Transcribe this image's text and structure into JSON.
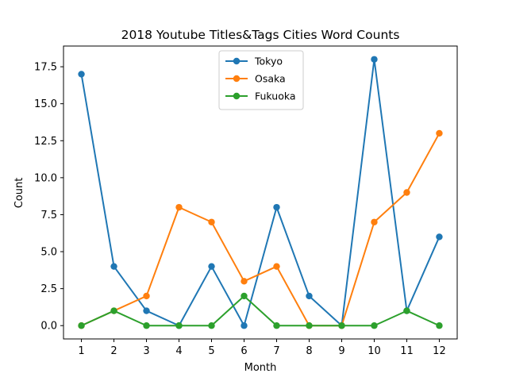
{
  "chart_data": {
    "type": "line",
    "title": "2018 Youtube Titles&Tags Cities Word Counts",
    "xlabel": "Month",
    "ylabel": "Count",
    "x": [
      1,
      2,
      3,
      4,
      5,
      6,
      7,
      8,
      9,
      10,
      11,
      12
    ],
    "x_ticks": [
      "1",
      "2",
      "3",
      "4",
      "5",
      "6",
      "7",
      "8",
      "9",
      "10",
      "11",
      "12"
    ],
    "y_ticks": [
      "0.0",
      "2.5",
      "5.0",
      "7.5",
      "10.0",
      "12.5",
      "15.0",
      "17.5"
    ],
    "y_tick_values": [
      0,
      2.5,
      5,
      7.5,
      10,
      12.5,
      15,
      17.5
    ],
    "xlim": [
      0.45,
      12.55
    ],
    "ylim": [
      -0.9,
      18.9
    ],
    "grid": false,
    "legend_position": "upper center",
    "series": [
      {
        "name": "Tokyo",
        "color": "#1f77b4",
        "values": [
          17,
          4,
          1,
          0,
          4,
          0,
          8,
          2,
          0,
          18,
          1,
          6
        ]
      },
      {
        "name": "Osaka",
        "color": "#ff7f0e",
        "values": [
          0,
          1,
          2,
          8,
          7,
          3,
          4,
          0,
          0,
          7,
          9,
          13
        ]
      },
      {
        "name": "Fukuoka",
        "color": "#2ca02c",
        "values": [
          0,
          1,
          0,
          0,
          0,
          2,
          0,
          0,
          0,
          0,
          1,
          0
        ]
      }
    ]
  }
}
